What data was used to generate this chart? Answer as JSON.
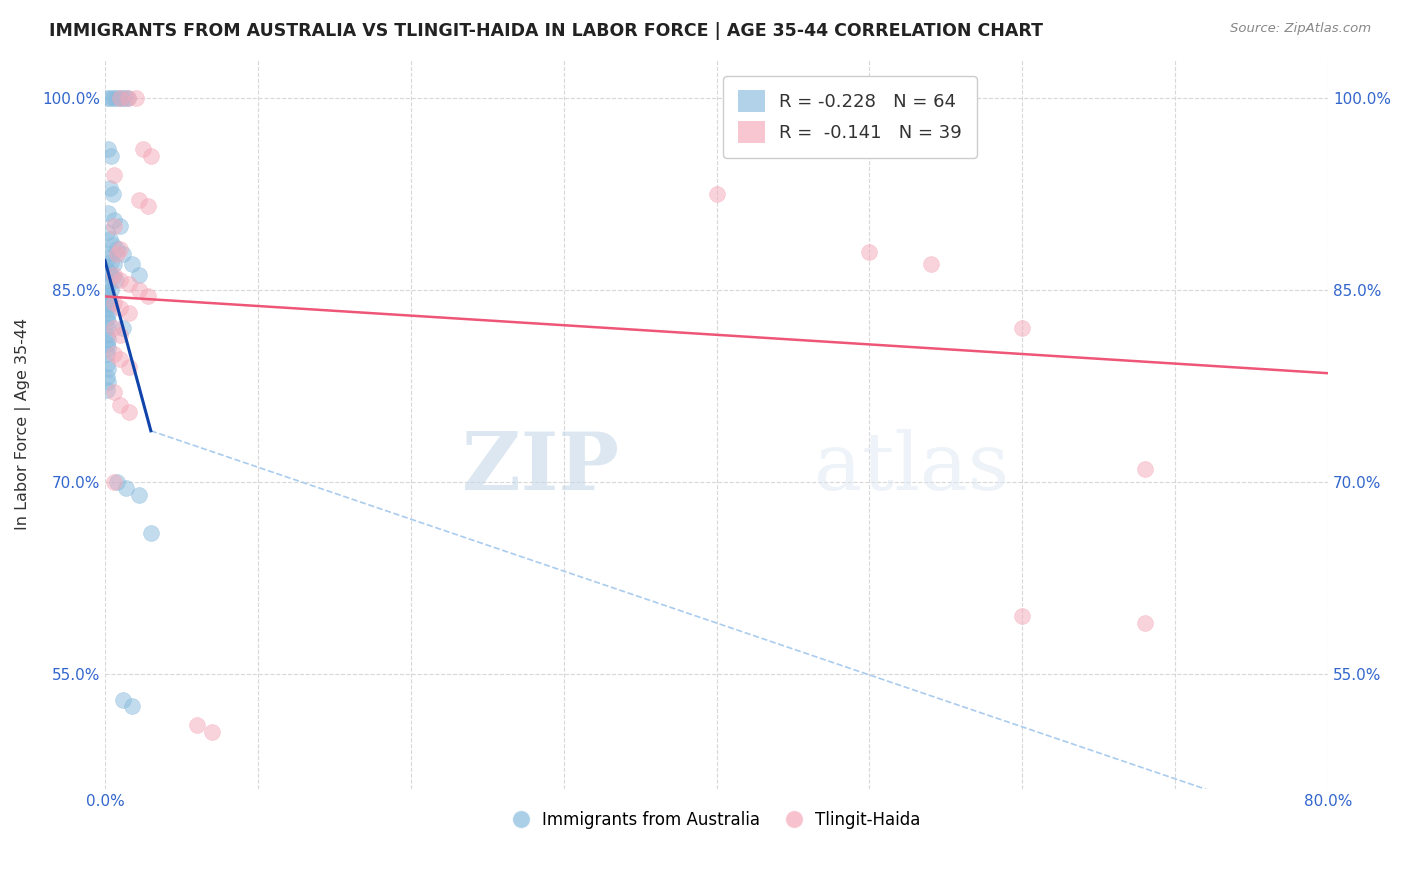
{
  "title": "IMMIGRANTS FROM AUSTRALIA VS TLINGIT-HAIDA IN LABOR FORCE | AGE 35-44 CORRELATION CHART",
  "source": "Source: ZipAtlas.com",
  "ylabel": "In Labor Force | Age 35-44",
  "xlim": [
    0.0,
    0.8
  ],
  "ylim": [
    0.46,
    1.03
  ],
  "x_ticks": [
    0.0,
    0.1,
    0.2,
    0.3,
    0.4,
    0.5,
    0.6,
    0.7,
    0.8
  ],
  "x_tick_labels": [
    "0.0%",
    "",
    "",
    "",
    "",
    "",
    "",
    "",
    "80.0%"
  ],
  "y_ticks": [
    0.55,
    0.7,
    0.85,
    1.0
  ],
  "y_tick_labels": [
    "55.0%",
    "70.0%",
    "85.0%",
    "100.0%"
  ],
  "blue_scatter": [
    [
      0.001,
      1.0
    ],
    [
      0.003,
      1.0
    ],
    [
      0.005,
      1.0
    ],
    [
      0.007,
      1.0
    ],
    [
      0.009,
      1.0
    ],
    [
      0.011,
      1.0
    ],
    [
      0.013,
      1.0
    ],
    [
      0.015,
      1.0
    ],
    [
      0.002,
      0.96
    ],
    [
      0.004,
      0.955
    ],
    [
      0.003,
      0.93
    ],
    [
      0.005,
      0.925
    ],
    [
      0.002,
      0.91
    ],
    [
      0.006,
      0.905
    ],
    [
      0.01,
      0.9
    ],
    [
      0.001,
      0.895
    ],
    [
      0.003,
      0.89
    ],
    [
      0.005,
      0.885
    ],
    [
      0.008,
      0.882
    ],
    [
      0.001,
      0.878
    ],
    [
      0.002,
      0.875
    ],
    [
      0.004,
      0.872
    ],
    [
      0.006,
      0.87
    ],
    [
      0.001,
      0.866
    ],
    [
      0.003,
      0.863
    ],
    [
      0.005,
      0.86
    ],
    [
      0.007,
      0.858
    ],
    [
      0.001,
      0.855
    ],
    [
      0.002,
      0.853
    ],
    [
      0.004,
      0.85
    ],
    [
      0.001,
      0.848
    ],
    [
      0.002,
      0.845
    ],
    [
      0.003,
      0.843
    ],
    [
      0.001,
      0.84
    ],
    [
      0.002,
      0.838
    ],
    [
      0.001,
      0.835
    ],
    [
      0.002,
      0.832
    ],
    [
      0.001,
      0.828
    ],
    [
      0.002,
      0.825
    ],
    [
      0.001,
      0.82
    ],
    [
      0.001,
      0.815
    ],
    [
      0.002,
      0.812
    ],
    [
      0.001,
      0.808
    ],
    [
      0.002,
      0.805
    ],
    [
      0.001,
      0.8
    ],
    [
      0.001,
      0.792
    ],
    [
      0.002,
      0.788
    ],
    [
      0.001,
      0.782
    ],
    [
      0.002,
      0.778
    ],
    [
      0.001,
      0.772
    ],
    [
      0.012,
      0.878
    ],
    [
      0.018,
      0.87
    ],
    [
      0.022,
      0.862
    ],
    [
      0.012,
      0.82
    ],
    [
      0.008,
      0.7
    ],
    [
      0.014,
      0.695
    ],
    [
      0.022,
      0.69
    ],
    [
      0.03,
      0.66
    ],
    [
      0.012,
      0.53
    ],
    [
      0.018,
      0.525
    ]
  ],
  "pink_scatter": [
    [
      0.01,
      1.0
    ],
    [
      0.015,
      1.0
    ],
    [
      0.02,
      1.0
    ],
    [
      0.025,
      0.96
    ],
    [
      0.03,
      0.955
    ],
    [
      0.006,
      0.94
    ],
    [
      0.022,
      0.92
    ],
    [
      0.028,
      0.916
    ],
    [
      0.006,
      0.9
    ],
    [
      0.01,
      0.882
    ],
    [
      0.008,
      0.878
    ],
    [
      0.006,
      0.862
    ],
    [
      0.01,
      0.858
    ],
    [
      0.016,
      0.855
    ],
    [
      0.022,
      0.85
    ],
    [
      0.028,
      0.845
    ],
    [
      0.006,
      0.84
    ],
    [
      0.01,
      0.836
    ],
    [
      0.016,
      0.832
    ],
    [
      0.006,
      0.82
    ],
    [
      0.01,
      0.815
    ],
    [
      0.006,
      0.8
    ],
    [
      0.01,
      0.796
    ],
    [
      0.016,
      0.79
    ],
    [
      0.006,
      0.77
    ],
    [
      0.01,
      0.76
    ],
    [
      0.016,
      0.755
    ],
    [
      0.006,
      0.7
    ],
    [
      0.4,
      0.925
    ],
    [
      0.5,
      0.88
    ],
    [
      0.54,
      0.87
    ],
    [
      0.6,
      0.82
    ],
    [
      0.68,
      0.71
    ],
    [
      0.6,
      0.595
    ],
    [
      0.68,
      0.59
    ],
    [
      0.06,
      0.51
    ],
    [
      0.07,
      0.505
    ]
  ],
  "blue_line": {
    "x0": 0.0,
    "y0": 0.873,
    "x1": 0.03,
    "y1": 0.74
  },
  "pink_line": {
    "x0": 0.0,
    "y0": 0.845,
    "x1": 0.8,
    "y1": 0.785
  },
  "dashed_line": {
    "x0": 0.03,
    "y0": 0.74,
    "x1": 0.72,
    "y1": 0.46
  },
  "watermark_zip": "ZIP",
  "watermark_atlas": "atlas",
  "background_color": "#ffffff",
  "grid_color": "#d8d8d8",
  "title_color": "#222222",
  "source_color": "#888888",
  "blue_color": "#88bbdd",
  "pink_color": "#f4a8b8",
  "blue_line_color": "#1144aa",
  "pink_line_color": "#ee5577",
  "dashed_line_color": "#aaccee",
  "legend_blue_label_R": "R = ",
  "legend_blue_R_val": "-0.228",
  "legend_blue_N": "N = 64",
  "legend_pink_label_R": "R =  ",
  "legend_pink_R_val": "-0.141",
  "legend_pink_N": "N = 39",
  "bottom_legend_blue": "Immigrants from Australia",
  "bottom_legend_pink": "Tlingit-Haida"
}
